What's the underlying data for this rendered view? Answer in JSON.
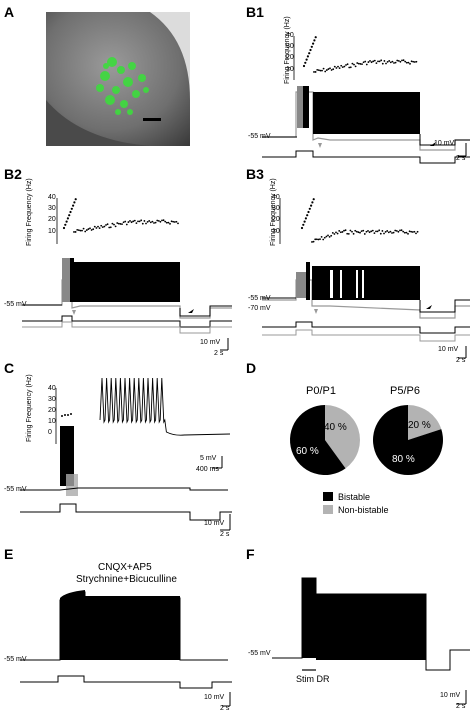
{
  "panels": {
    "A": "A",
    "B1": "B1",
    "B2": "B2",
    "B3": "B3",
    "C": "C",
    "D": "D",
    "E": "E",
    "F": "F"
  },
  "axis": {
    "ylabel": "Firing Frequency (Hz)",
    "ticks_40": [
      "40",
      "30",
      "20",
      "10"
    ],
    "ticks_c": [
      "40",
      "30",
      "20",
      "10",
      "0"
    ]
  },
  "voltages": {
    "m55": "-55 mV",
    "m70": "-70 mV"
  },
  "scalebars": {
    "v10": "10 mV",
    "s2": "2 s",
    "v5": "5 mV",
    "ms400": "400 ms"
  },
  "panelE": {
    "line1": "CNQX+AP5",
    "line2": "Strychnine+Bicuculline"
  },
  "panelF": {
    "stim": "Stim DR"
  },
  "chart_data": [
    {
      "type": "pie",
      "title": "P0/P1",
      "categories": [
        "Bistable",
        "Non-bistable"
      ],
      "values": [
        60,
        40
      ],
      "labels": [
        "60 %",
        "40 %"
      ],
      "colors": [
        "#000000",
        "#b3b3b3"
      ]
    },
    {
      "type": "pie",
      "title": "P5/P6",
      "categories": [
        "Bistable",
        "Non-bistable"
      ],
      "values": [
        80,
        20
      ],
      "labels": [
        "80 %",
        "20 %"
      ],
      "colors": [
        "#000000",
        "#b3b3b3"
      ]
    }
  ],
  "legend": {
    "bistable": "Bistable",
    "nonbistable": "Non-bistable"
  }
}
